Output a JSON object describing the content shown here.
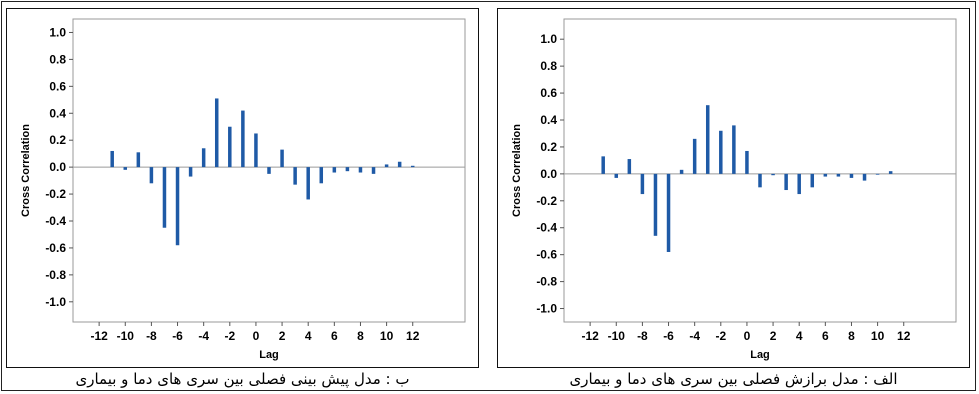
{
  "chart_data": [
    {
      "type": "bar",
      "xlabel": "Lag",
      "ylabel": "Cross Correlation",
      "ylim": [
        -1.15,
        1.1
      ],
      "xlim": [
        -14,
        16
      ],
      "y_ticks": [
        "1.0",
        "0.8",
        "0.6",
        "0.4",
        "0.2",
        "0.0",
        "-0.2",
        "-0.4",
        "-0.6",
        "-0.8",
        "-1.0"
      ],
      "x_ticks": [
        "-12",
        "-10",
        "-8",
        "-6",
        "-4",
        "-2",
        "0",
        "2",
        "4",
        "6",
        "8",
        "10",
        "12"
      ],
      "grid": false,
      "series_color": "#1f5aa6",
      "lags": [
        -11,
        -10,
        -9,
        -8,
        -7,
        -6,
        -5,
        -4,
        -3,
        -2,
        -1,
        0,
        1,
        2,
        3,
        4,
        5,
        6,
        7,
        8,
        9,
        10,
        11,
        12
      ],
      "values": [
        0.12,
        -0.02,
        0.11,
        -0.12,
        -0.45,
        -0.58,
        -0.07,
        0.14,
        0.51,
        0.3,
        0.42,
        0.25,
        -0.05,
        0.13,
        -0.13,
        -0.24,
        -0.12,
        -0.04,
        -0.03,
        -0.04,
        -0.05,
        0.02,
        0.04,
        0.01
      ],
      "caption": "ب : مدل پیش بینی فصلی بین سری های دما و بیماری"
    },
    {
      "type": "bar",
      "xlabel": "Lag",
      "ylabel": "Cross Correlation",
      "ylim": [
        -1.1,
        1.15
      ],
      "xlim": [
        -14,
        16
      ],
      "y_ticks": [
        "1.0",
        "0.8",
        "0.6",
        "0.4",
        "0.2",
        "0.0",
        "-0.2",
        "-0.4",
        "-0.6",
        "-0.8",
        "-1.0"
      ],
      "x_ticks": [
        "-12",
        "-10",
        "-8",
        "-6",
        "-4",
        "-2",
        "0",
        "2",
        "4",
        "6",
        "8",
        "10",
        "12"
      ],
      "grid": false,
      "series_color": "#1f5aa6",
      "lags": [
        -11,
        -10,
        -9,
        -8,
        -7,
        -6,
        -5,
        -4,
        -3,
        -2,
        -1,
        0,
        1,
        2,
        3,
        4,
        5,
        6,
        7,
        8,
        9,
        10,
        11
      ],
      "values": [
        0.13,
        -0.03,
        0.11,
        -0.15,
        -0.46,
        -0.58,
        0.03,
        0.26,
        0.51,
        0.32,
        0.36,
        0.17,
        -0.1,
        -0.01,
        -0.12,
        -0.15,
        -0.1,
        -0.02,
        -0.02,
        -0.03,
        -0.05,
        0.0,
        0.02
      ],
      "caption": "الف : مدل برازش فصلی بین سری های دما و بیماری"
    }
  ]
}
